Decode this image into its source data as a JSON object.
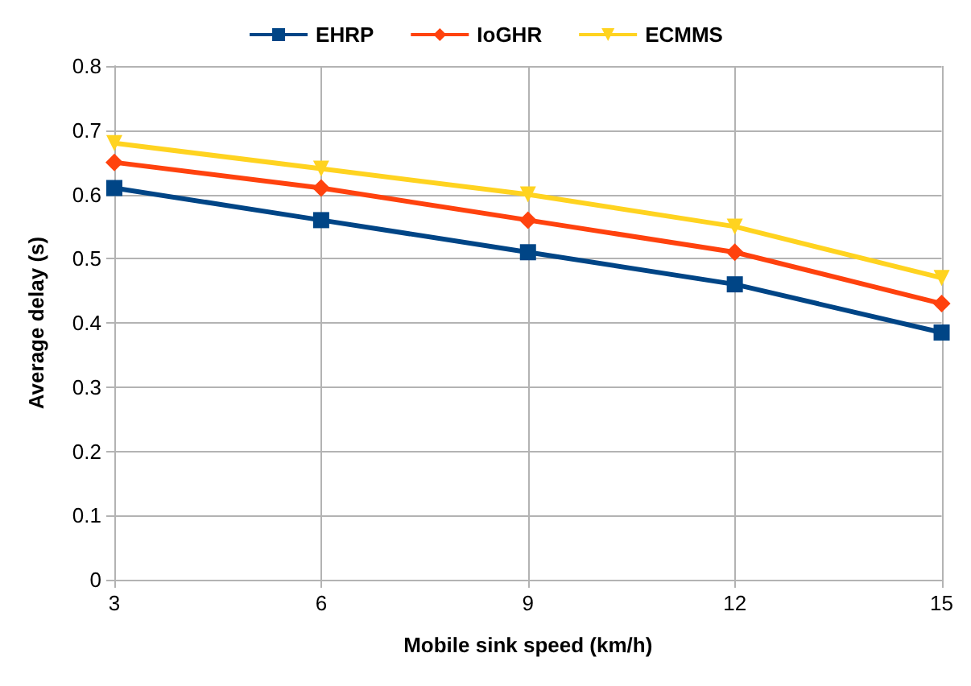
{
  "chart_data": {
    "type": "line",
    "xlabel": "Mobile sink speed (km/h)",
    "ylabel": "Average delay (s)",
    "x": [
      3,
      6,
      9,
      12,
      15
    ],
    "xlim": [
      3,
      15
    ],
    "xticks": [
      3,
      6,
      9,
      12,
      15
    ],
    "ylim": [
      0,
      0.8
    ],
    "yticks": [
      0,
      0.1,
      0.2,
      0.3,
      0.4,
      0.5,
      0.6,
      0.7,
      0.8
    ],
    "grid": true,
    "legend": "top",
    "line_style": "solid",
    "series": [
      {
        "name": "EHRP",
        "color": "#004586",
        "marker": "square",
        "values": [
          0.61,
          0.56,
          0.51,
          0.46,
          0.385
        ]
      },
      {
        "name": "IoGHR",
        "color": "#ff420e",
        "marker": "diamond",
        "values": [
          0.65,
          0.61,
          0.56,
          0.51,
          0.43
        ]
      },
      {
        "name": "ECMMS",
        "color": "#ffd320",
        "marker": "triangle",
        "values": [
          0.68,
          0.64,
          0.6,
          0.55,
          0.47
        ]
      }
    ]
  }
}
